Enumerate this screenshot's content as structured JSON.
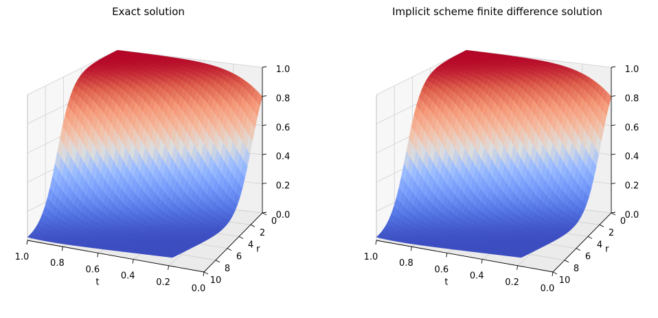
{
  "chart_data": [
    {
      "type": "surface",
      "title": "Exact solution",
      "xlabel": "t",
      "ylabel": "r",
      "zlabel": "",
      "x_ticks": [
        "1.0",
        "0.8",
        "0.6",
        "0.4",
        "0.2",
        "0.0"
      ],
      "y_ticks": [
        "0",
        "2",
        "4",
        "6",
        "8",
        "10"
      ],
      "z_ticks": [
        "0.0",
        "0.2",
        "0.4",
        "0.6",
        "0.8",
        "1.0"
      ],
      "xlim": [
        0,
        1
      ],
      "ylim": [
        0,
        10
      ],
      "zlim": [
        0,
        1
      ],
      "colormap": "coolwarm",
      "grid": true
    },
    {
      "type": "surface",
      "title": "Implicit scheme finite difference solution",
      "xlabel": "t",
      "ylabel": "r",
      "zlabel": "",
      "x_ticks": [
        "1.0",
        "0.8",
        "0.6",
        "0.4",
        "0.2",
        "0.0"
      ],
      "y_ticks": [
        "0",
        "2",
        "4",
        "6",
        "8",
        "10"
      ],
      "z_ticks": [
        "0.0",
        "0.2",
        "0.4",
        "0.6",
        "0.8",
        "1.0"
      ],
      "xlim": [
        0,
        1
      ],
      "ylim": [
        0,
        10
      ],
      "zlim": [
        0,
        1
      ],
      "colormap": "coolwarm",
      "grid": true
    }
  ]
}
